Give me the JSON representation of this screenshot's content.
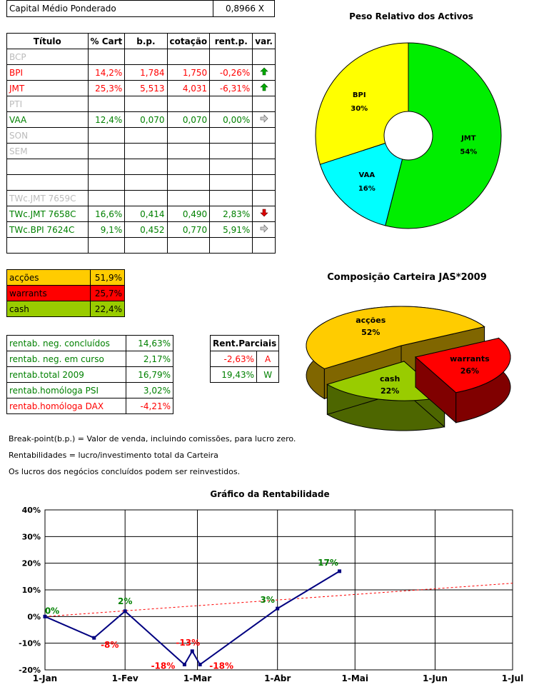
{
  "capital": {
    "label": "Capital Médio Ponderado",
    "value": "0,8966 X"
  },
  "assets_table": {
    "headers": [
      "Título",
      "% Cart",
      "b.p.",
      "cotação",
      "rent.p.",
      "var."
    ],
    "rows": [
      {
        "titulo": "BCP",
        "pct": "",
        "bp": "",
        "cot": "",
        "rent": "",
        "var": "",
        "status": "inactive"
      },
      {
        "titulo": "BPI",
        "pct": "14,2%",
        "bp": "1,784",
        "cot": "1,750",
        "rent": "-0,26%",
        "var": "up",
        "status": "loss"
      },
      {
        "titulo": "JMT",
        "pct": "25,3%",
        "bp": "5,513",
        "cot": "4,031",
        "rent": "-6,31%",
        "var": "up",
        "status": "loss"
      },
      {
        "titulo": "PTI",
        "pct": "",
        "bp": "",
        "cot": "",
        "rent": "",
        "var": "",
        "status": "inactive"
      },
      {
        "titulo": "VAA",
        "pct": "12,4%",
        "bp": "0,070",
        "cot": "0,070",
        "rent": "0,00%",
        "var": "flat",
        "status": "gain"
      },
      {
        "titulo": "SON",
        "pct": "",
        "bp": "",
        "cot": "",
        "rent": "",
        "var": "",
        "status": "inactive"
      },
      {
        "titulo": "SEM",
        "pct": "",
        "bp": "",
        "cot": "",
        "rent": "",
        "var": "",
        "status": "inactive"
      },
      {
        "titulo": "",
        "pct": "",
        "bp": "",
        "cot": "",
        "rent": "",
        "var": "",
        "status": "empty"
      },
      {
        "titulo": "",
        "pct": "",
        "bp": "",
        "cot": "",
        "rent": "",
        "var": "",
        "status": "empty"
      },
      {
        "titulo": "TWc.JMT 7659C",
        "pct": "",
        "bp": "",
        "cot": "",
        "rent": "",
        "var": "",
        "status": "inactive"
      },
      {
        "titulo": "TWc.JMT 7658C",
        "pct": "16,6%",
        "bp": "0,414",
        "cot": "0,490",
        "rent": "2,83%",
        "var": "down",
        "status": "gain"
      },
      {
        "titulo": "TWc.BPI 7624C",
        "pct": "9,1%",
        "bp": "0,452",
        "cot": "0,770",
        "rent": "5,91%",
        "var": "flat",
        "status": "gain"
      },
      {
        "titulo": "",
        "pct": "",
        "bp": "",
        "cot": "",
        "rent": "",
        "var": "",
        "status": "empty"
      }
    ]
  },
  "composition_table": [
    {
      "label": "acções",
      "value": "51,9%",
      "color": "#ffcc00"
    },
    {
      "label": "warrants",
      "value": "25,7%",
      "color": "#ff0000"
    },
    {
      "label": "cash",
      "value": "22,4%",
      "color": "#99cc00"
    }
  ],
  "rentab_table": [
    {
      "label": "rentab. neg. concluídos",
      "value": "14,63%",
      "color": "#008000"
    },
    {
      "label": "rentab. neg. em curso",
      "value": "2,17%",
      "color": "#008000"
    },
    {
      "label": "rentab.total 2009",
      "value": "16,79%",
      "color": "#008000"
    },
    {
      "label": "rentab.homóloga PSI",
      "value": "3,02%",
      "color": "#008000"
    },
    {
      "label": "rentab.homóloga DAX",
      "value": "-4,21%",
      "color": "#ff0000"
    }
  ],
  "parciais": {
    "header": "Rent.Parciais",
    "rows": [
      {
        "value": "-2,63%",
        "tag": "A",
        "color": "#ff0000"
      },
      {
        "value": "19,43%",
        "tag": "W",
        "color": "#008000"
      }
    ]
  },
  "notes": [
    "Break-point(b.p.) = Valor de venda, incluindo comissões, para lucro zero.",
    "Rentabilidades = lucro/investimento total da Carteira",
    "Os lucros dos negócios concluídos podem ser reinvestidos."
  ],
  "chart_data": [
    {
      "type": "pie",
      "subtype": "doughnut",
      "title": "Peso Relativo dos Activos",
      "categories": [
        "JMT",
        "VAA",
        "BPI"
      ],
      "values": [
        54,
        16,
        30
      ],
      "labels": [
        "54%",
        "16%",
        "30%"
      ],
      "colors": [
        "#00ee00",
        "#00ffff",
        "#ffff00"
      ]
    },
    {
      "type": "pie",
      "subtype": "3d-exploded",
      "title": "Composição Carteira JAS*2009",
      "categories": [
        "acções",
        "warrants",
        "cash"
      ],
      "values": [
        52,
        26,
        22
      ],
      "labels": [
        "52%",
        "26%",
        "22%"
      ],
      "colors": [
        "#ffcc00",
        "#ff0000",
        "#99cc00"
      ],
      "side_colors": [
        "#806600",
        "#800000",
        "#4d6600"
      ]
    },
    {
      "type": "line",
      "title": "Gráfico da Rentabilidade",
      "xticks": [
        "1-Jan",
        "1-Fev",
        "1-Mar",
        "1-Abr",
        "1-Mai",
        "1-Jun",
        "1-Jul"
      ],
      "xrange_days": [
        0,
        181
      ],
      "ylim": [
        -20,
        40
      ],
      "yticks": [
        "-20%",
        "-10%",
        "0%",
        "10%",
        "20%",
        "30%",
        "40%"
      ],
      "grid": true,
      "series": [
        {
          "color": "#000080",
          "points": [
            {
              "x": "1-Jan",
              "y": 0,
              "label": "0%"
            },
            {
              "x": "20-Jan",
              "y": -8,
              "label": "-8%"
            },
            {
              "x": "1-Fev",
              "y": 2,
              "label": "2%"
            },
            {
              "x": "24-Fev",
              "y": -18,
              "label": "-18%"
            },
            {
              "x": "27-Fev",
              "y": -13,
              "label": "-13%"
            },
            {
              "x": "2-Mar",
              "y": -18,
              "label": "-18%"
            },
            {
              "x": "1-Abr",
              "y": 3,
              "label": "3%"
            },
            {
              "x": "25-Abr",
              "y": 17,
              "label": "17%"
            }
          ]
        }
      ],
      "trendline": {
        "from": 0,
        "to": 12.5,
        "color": "#ff0000",
        "style": "dashed"
      }
    }
  ]
}
